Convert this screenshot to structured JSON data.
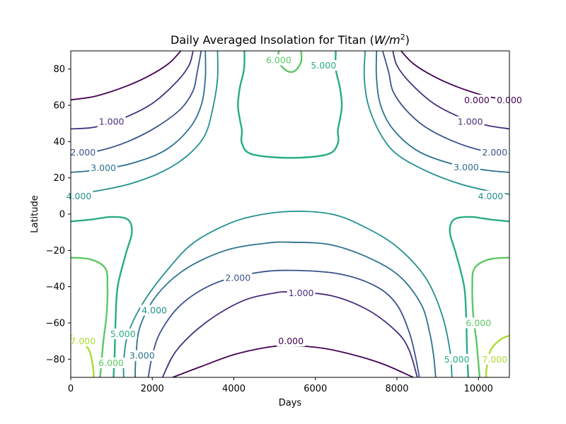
{
  "chart_data": {
    "type": "contour",
    "title": "Daily Averaged Insolation for Titan (",
    "title_unit": "W/m",
    "title_exp": "2",
    "title_close": ")",
    "xlabel": "Days",
    "ylabel": "Latitude",
    "xlim": [
      0,
      10759
    ],
    "ylim": [
      -90,
      90
    ],
    "xticks": [
      0,
      2000,
      4000,
      6000,
      8000,
      10000
    ],
    "yticks": [
      -80,
      -60,
      -40,
      -20,
      0,
      20,
      40,
      60,
      80
    ],
    "levels": [
      {
        "value": 0,
        "label": "0.000",
        "color": "#440154"
      },
      {
        "value": 1,
        "label": "1.000",
        "color": "#472f7d"
      },
      {
        "value": 2,
        "label": "2.000",
        "color": "#3b528b"
      },
      {
        "value": 3,
        "label": "3.000",
        "color": "#2c718e"
      },
      {
        "value": 4,
        "label": "4.000",
        "color": "#21908d"
      },
      {
        "value": 5,
        "label": "5.000",
        "color": "#27ad81"
      },
      {
        "value": 6,
        "label": "6.000",
        "color": "#5cc863"
      },
      {
        "value": 7,
        "label": "7.000",
        "color": "#aadc32"
      }
    ],
    "contours": [
      {
        "level": 0,
        "points": [
          [
            0,
            63
          ],
          [
            600,
            65
          ],
          [
            1300,
            70
          ],
          [
            1900,
            76
          ],
          [
            2400,
            83
          ],
          [
            2700,
            90
          ]
        ]
      },
      {
        "level": 0,
        "points": [
          [
            8100,
            90
          ],
          [
            8400,
            83
          ],
          [
            8900,
            76
          ],
          [
            9500,
            70
          ],
          [
            10200,
            65
          ],
          [
            10759,
            63
          ]
        ]
      },
      {
        "level": 0,
        "points": [
          [
            2500,
            -90
          ],
          [
            3200,
            -84
          ],
          [
            4000,
            -77.5
          ],
          [
            4800,
            -73.5
          ],
          [
            5400,
            -72.5
          ],
          [
            6200,
            -74
          ],
          [
            7000,
            -78
          ],
          [
            7700,
            -83
          ],
          [
            8400,
            -90
          ]
        ]
      },
      {
        "level": 1,
        "points": [
          [
            0,
            47
          ],
          [
            600,
            48
          ],
          [
            1300,
            53
          ],
          [
            2000,
            61
          ],
          [
            2600,
            73
          ],
          [
            2900,
            82
          ],
          [
            3000,
            90
          ]
        ]
      },
      {
        "level": 1,
        "points": [
          [
            7900,
            90
          ],
          [
            8000,
            82
          ],
          [
            8300,
            73
          ],
          [
            8900,
            61
          ],
          [
            9600,
            53
          ],
          [
            10200,
            49
          ],
          [
            10759,
            47
          ]
        ]
      },
      {
        "level": 1,
        "points": [
          [
            2250,
            -90
          ],
          [
            2600,
            -75
          ],
          [
            3300,
            -60
          ],
          [
            4200,
            -48
          ],
          [
            5000,
            -43.5
          ],
          [
            5400,
            -43
          ],
          [
            6400,
            -45
          ],
          [
            7300,
            -53
          ],
          [
            8000,
            -65
          ],
          [
            8300,
            -75
          ],
          [
            8500,
            -90
          ]
        ]
      },
      {
        "level": 2,
        "points": [
          [
            0,
            33
          ],
          [
            700,
            35
          ],
          [
            1400,
            40
          ],
          [
            2100,
            48
          ],
          [
            2700,
            58
          ],
          [
            3000,
            68
          ],
          [
            3100,
            78
          ],
          [
            3200,
            90
          ]
        ]
      },
      {
        "level": 2,
        "points": [
          [
            7650,
            90
          ],
          [
            7800,
            78
          ],
          [
            7900,
            68
          ],
          [
            8200,
            58
          ],
          [
            8700,
            48
          ],
          [
            9400,
            40
          ],
          [
            10100,
            35
          ],
          [
            10759,
            33
          ]
        ]
      },
      {
        "level": 2,
        "points": [
          [
            1900,
            -90
          ],
          [
            2000,
            -78
          ],
          [
            2200,
            -65
          ],
          [
            2700,
            -50
          ],
          [
            3500,
            -38.5
          ],
          [
            4500,
            -32.5
          ],
          [
            5400,
            -31
          ],
          [
            6600,
            -33
          ],
          [
            7500,
            -40
          ],
          [
            8000,
            -50
          ],
          [
            8300,
            -65
          ],
          [
            8450,
            -78
          ],
          [
            8550,
            -90
          ]
        ]
      },
      {
        "level": 3,
        "points": [
          [
            0,
            23
          ],
          [
            700,
            24.5
          ],
          [
            1500,
            28
          ],
          [
            2300,
            35
          ],
          [
            2900,
            47
          ],
          [
            3200,
            60
          ],
          [
            3300,
            75
          ],
          [
            3300,
            90
          ]
        ]
      },
      {
        "level": 3,
        "points": [
          [
            7500,
            90
          ],
          [
            7500,
            75
          ],
          [
            7600,
            60
          ],
          [
            7900,
            47
          ],
          [
            8500,
            35
          ],
          [
            9300,
            28
          ],
          [
            10100,
            24.5
          ],
          [
            10759,
            23
          ]
        ]
      },
      {
        "level": 3,
        "points": [
          [
            1580,
            -90
          ],
          [
            1600,
            -78
          ],
          [
            1700,
            -62
          ],
          [
            2100,
            -45
          ],
          [
            2800,
            -30.5
          ],
          [
            3800,
            -20
          ],
          [
            4800,
            -16
          ],
          [
            5400,
            -15.5
          ],
          [
            6400,
            -17
          ],
          [
            7400,
            -25
          ],
          [
            8100,
            -35
          ],
          [
            8600,
            -50
          ],
          [
            8800,
            -65
          ],
          [
            8900,
            -78
          ],
          [
            8950,
            -90
          ]
        ]
      },
      {
        "level": 4,
        "points": [
          [
            0,
            11
          ],
          [
            700,
            13
          ],
          [
            1500,
            17
          ],
          [
            2300,
            24
          ],
          [
            2900,
            33
          ],
          [
            3300,
            44
          ],
          [
            3500,
            60
          ],
          [
            3600,
            75
          ],
          [
            3600,
            90
          ]
        ]
      },
      {
        "level": 4,
        "points": [
          [
            7220,
            90
          ],
          [
            7200,
            75
          ],
          [
            7300,
            60
          ],
          [
            7600,
            44
          ],
          [
            8000,
            33
          ],
          [
            8700,
            24
          ],
          [
            9500,
            17
          ],
          [
            10200,
            13
          ],
          [
            10759,
            11
          ]
        ]
      },
      {
        "level": 4,
        "points": [
          [
            1300,
            -90
          ],
          [
            1300,
            -80
          ],
          [
            1420,
            -65
          ],
          [
            1800,
            -48
          ],
          [
            2400,
            -30
          ],
          [
            3000,
            -16
          ],
          [
            3800,
            -6
          ],
          [
            4500,
            -1
          ],
          [
            5400,
            1.5
          ],
          [
            6400,
            0
          ],
          [
            7200,
            -7
          ],
          [
            8000,
            -18
          ],
          [
            8700,
            -35
          ],
          [
            9100,
            -55
          ],
          [
            9300,
            -75
          ],
          [
            9350,
            -90
          ]
        ]
      },
      {
        "level": 5,
        "points": [
          [
            0,
            -4
          ],
          [
            500,
            -3
          ],
          [
            1000,
            -1.5
          ],
          [
            1400,
            -3
          ],
          [
            1500,
            -10
          ],
          [
            1350,
            -22
          ],
          [
            1150,
            -40
          ],
          [
            1100,
            -58
          ],
          [
            1080,
            -75
          ],
          [
            1050,
            -90
          ]
        ]
      },
      {
        "level": 5,
        "points": [
          [
            10759,
            -4
          ],
          [
            10300,
            -3
          ],
          [
            9800,
            -1.5
          ],
          [
            9400,
            -3
          ],
          [
            9300,
            -10
          ],
          [
            9450,
            -22
          ],
          [
            9650,
            -40
          ],
          [
            9700,
            -58
          ],
          [
            9720,
            -75
          ],
          [
            9750,
            -90
          ]
        ]
      },
      {
        "level": 5,
        "points": [
          [
            4260,
            90
          ],
          [
            4250,
            80
          ],
          [
            4150,
            70
          ],
          [
            4100,
            60
          ],
          [
            4150,
            52
          ],
          [
            4200,
            46
          ],
          [
            4200,
            39
          ],
          [
            4450,
            33
          ],
          [
            5400,
            31
          ],
          [
            6300,
            33
          ],
          [
            6550,
            39
          ],
          [
            6550,
            46
          ],
          [
            6600,
            52
          ],
          [
            6650,
            60
          ],
          [
            6600,
            70
          ],
          [
            6500,
            80
          ],
          [
            6500,
            90
          ]
        ]
      },
      {
        "level": 6,
        "points": [
          [
            0,
            -24
          ],
          [
            500,
            -25
          ],
          [
            850,
            -30
          ],
          [
            900,
            -40
          ],
          [
            880,
            -55
          ],
          [
            800,
            -70
          ],
          [
            760,
            -80
          ],
          [
            720,
            -90
          ]
        ]
      },
      {
        "level": 6,
        "points": [
          [
            10759,
            -24
          ],
          [
            10250,
            -25
          ],
          [
            9900,
            -30
          ],
          [
            9850,
            -40
          ],
          [
            9870,
            -55
          ],
          [
            9950,
            -70
          ],
          [
            9990,
            -80
          ],
          [
            10030,
            -90
          ]
        ]
      },
      {
        "level": 6,
        "points": [
          [
            5100,
            90
          ],
          [
            5100,
            84
          ],
          [
            5300,
            79
          ],
          [
            5500,
            79
          ],
          [
            5650,
            84
          ],
          [
            5650,
            90
          ]
        ]
      },
      {
        "level": 7,
        "points": [
          [
            0,
            -67
          ],
          [
            200,
            -69
          ],
          [
            450,
            -75
          ],
          [
            550,
            -85
          ],
          [
            560,
            -90
          ]
        ]
      },
      {
        "level": 7,
        "points": [
          [
            10759,
            -67
          ],
          [
            10550,
            -69
          ],
          [
            10300,
            -75
          ],
          [
            10200,
            -85
          ],
          [
            10190,
            -90
          ]
        ]
      }
    ],
    "contour_labels": [
      {
        "level": 0,
        "x": 9960,
        "y": 63
      },
      {
        "level": 0,
        "x": 5400,
        "y": -70
      },
      {
        "level": 0,
        "x": 10759,
        "y": 63
      },
      {
        "level": 1,
        "x": 1000,
        "y": 51
      },
      {
        "level": 1,
        "x": 9800,
        "y": 51
      },
      {
        "level": 1,
        "x": 5650,
        "y": -43.5
      },
      {
        "level": 2,
        "x": 300,
        "y": 34
      },
      {
        "level": 2,
        "x": 10400,
        "y": 34
      },
      {
        "level": 2,
        "x": 4100,
        "y": -35
      },
      {
        "level": 3,
        "x": 800,
        "y": 25.5
      },
      {
        "level": 3,
        "x": 9700,
        "y": 26
      },
      {
        "level": 3,
        "x": 1750,
        "y": -78
      },
      {
        "level": 4,
        "x": 200,
        "y": 10
      },
      {
        "level": 4,
        "x": 10300,
        "y": 10
      },
      {
        "level": 4,
        "x": 2050,
        "y": -53
      },
      {
        "level": 5,
        "x": 6200,
        "y": 82
      },
      {
        "level": 5,
        "x": 1280,
        "y": -66
      },
      {
        "level": 5,
        "x": 9470,
        "y": -80
      },
      {
        "level": 6,
        "x": 5100,
        "y": 85
      },
      {
        "level": 6,
        "x": 990,
        "y": -82
      },
      {
        "level": 6,
        "x": 10000,
        "y": -60
      },
      {
        "level": 7,
        "x": 300,
        "y": -70
      },
      {
        "level": 7,
        "x": 10400,
        "y": -80
      }
    ]
  }
}
